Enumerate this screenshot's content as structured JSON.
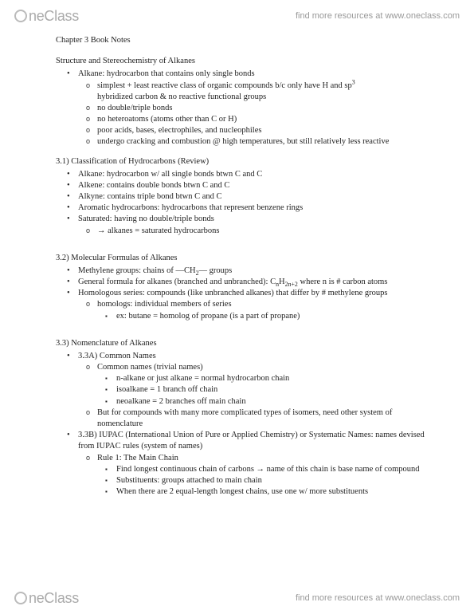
{
  "brand": {
    "part1": "ne",
    "part2": "Class"
  },
  "resources_text": "find more resources at www.oneclass.com",
  "title": "Chapter 3 Book Notes",
  "s0": {
    "head": "Structure and Stereochemistry of Alkanes",
    "b1": "Alkane: hydrocarbon that contains only single bonds",
    "o1a": "simplest + least reactive class of organic compounds b/c only have H and sp",
    "o1a_sup": "3",
    "o1b": "hybridized carbon & no reactive functional groups",
    "o2": "no double/triple bonds",
    "o3": "no heteroatoms (atoms other than C or H)",
    "o4": "poor acids, bases, electrophiles, and nucleophiles",
    "o5": "undergo cracking and combustion @ high temperatures, but still relatively less reactive"
  },
  "s1": {
    "head": "3.1) Classification of  Hydrocarbons (Review)",
    "b1": "Alkane: hydrocarbon w/ all single bonds btwn C and C",
    "b2": "Alkene: contains double bonds btwn C and C",
    "b3": "Alkyne: contains triple bond btwn C and C",
    "b4": "Aromatic hydrocarbons: hydrocarbons that represent benzene rings",
    "b5": "Saturated: having no double/triple bonds",
    "o1": "→ alkanes = saturated hydrocarbons"
  },
  "s2": {
    "head": "3.2) Molecular Formulas of Alkanes",
    "b1a": "Methylene groups: chains of —CH",
    "b1sub": "2",
    "b1b": "— groups",
    "b2a": "General formula for alkanes (branched and unbranched): C",
    "b2n": "n",
    "b2h": "H",
    "b2n2": "2n+2",
    "b2b": " where n is # carbon atoms",
    "b3": "Homologous series: compounds (like unbranched alkanes) that differ by # methylene groups",
    "o1": "homologs: individual members of series",
    "sq1": "ex: butane = homolog of propane (is a part of propane)"
  },
  "s3": {
    "head": "3.3) Nomenclature of Alkanes",
    "a_head": "3.3A) Common Names",
    "a_o1": "Common names (trivial names)",
    "a_sq1": "n-alkane or just alkane = normal hydrocarbon chain",
    "a_sq2": "isoalkane = 1 branch off chain",
    "a_sq3": "neoalkane = 2 branches off main chain",
    "a_o2": "But for compounds with many more complicated types of isomers, need other system of nomenclature",
    "b_head": "3.3B) IUPAC (International Union of Pure or Applied Chemistry) or Systematic Names: names devised from IUPAC rules (system of names)",
    "b_o1": "Rule 1: The Main Chain",
    "b_sq1": "Find longest continuous chain of carbons → name of this chain is base name of compound",
    "b_sq2": "Substituents: groups attached to main chain",
    "b_sq3": "When there are 2 equal-length longest chains, use one w/ more substituents"
  }
}
